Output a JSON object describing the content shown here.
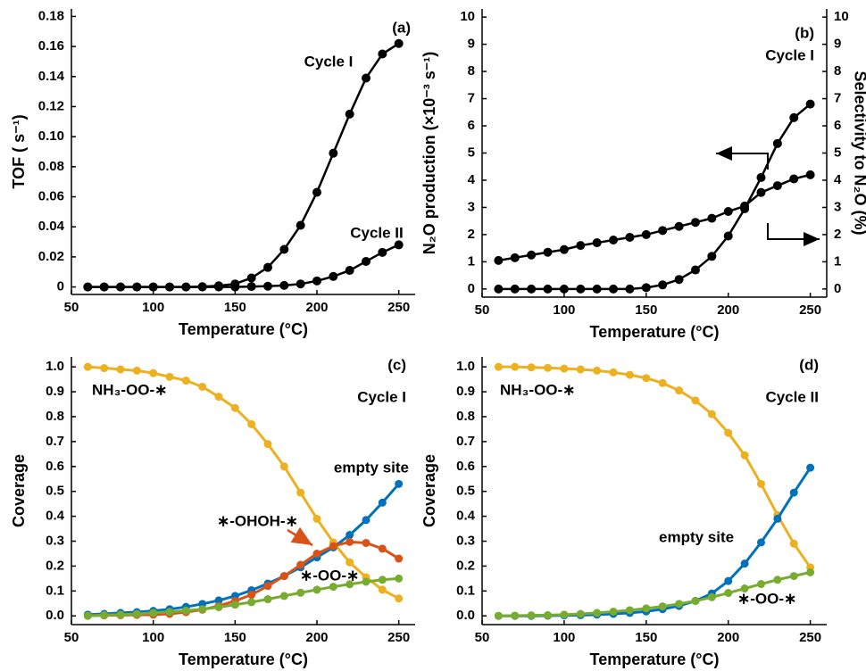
{
  "chart_data": [
    {
      "type": "line",
      "xlabel": "Temperature (°C)",
      "ylabel": "TOF ( s⁻¹)",
      "annotations": [
        "(a)"
      ],
      "x": [
        60,
        70,
        80,
        90,
        100,
        110,
        120,
        130,
        140,
        150,
        160,
        170,
        180,
        190,
        200,
        210,
        220,
        230,
        240,
        250
      ],
      "series": [
        {
          "name": "Cycle I",
          "color": "#000000",
          "values": [
            0,
            0,
            0,
            0,
            0,
            0,
            0,
            0.0002,
            0.0008,
            0.002,
            0.006,
            0.013,
            0.025,
            0.041,
            0.063,
            0.089,
            0.115,
            0.139,
            0.155,
            0.162
          ]
        },
        {
          "name": "Cycle II",
          "color": "#000000",
          "values": [
            0,
            0,
            0,
            0,
            0,
            0,
            0,
            0,
            0,
            0,
            0.0003,
            0.0005,
            0.001,
            0.002,
            0.004,
            0.007,
            0.011,
            0.017,
            0.023,
            0.028
          ]
        }
      ],
      "xlim": [
        50,
        260
      ],
      "xticks": [
        50,
        100,
        150,
        200,
        250
      ],
      "ylim": [
        -0.005,
        0.185
      ],
      "yticks": [
        0,
        0.02,
        0.04,
        0.06,
        0.08,
        {
          "value": 0.1,
          "label": "0.10"
        },
        0.12,
        0.14,
        0.16,
        0.18
      ]
    },
    {
      "type": "line",
      "xlabel": "Temperature (°C)",
      "ylabel": "N₂O production (×10⁻³ s⁻¹)",
      "y2label": "Selectivity to N₂O (%)",
      "annotations": [
        "(b)",
        "Cycle I"
      ],
      "x": [
        60,
        70,
        80,
        90,
        100,
        110,
        120,
        130,
        140,
        150,
        160,
        170,
        180,
        190,
        200,
        210,
        220,
        230,
        240,
        250
      ],
      "series": [
        {
          "color": "#000000",
          "values": [
            0,
            0,
            0,
            0,
            0,
            0,
            0,
            0,
            0,
            0.05,
            0.15,
            0.35,
            0.7,
            1.2,
            1.95,
            2.95,
            4.1,
            5.35,
            6.3,
            6.8
          ]
        },
        {
          "color": "#000000",
          "axis": "y2",
          "values": [
            1.05,
            1.15,
            1.25,
            1.35,
            1.45,
            1.6,
            1.7,
            1.8,
            1.9,
            2.0,
            2.15,
            2.3,
            2.45,
            2.6,
            2.85,
            3.05,
            3.55,
            3.8,
            4.05,
            4.2
          ]
        }
      ],
      "xlim": [
        50,
        260
      ],
      "xticks": [
        50,
        100,
        150,
        200,
        250
      ],
      "ylim": [
        -0.3,
        10.3
      ],
      "yticks": [
        0,
        1,
        2,
        3,
        4,
        5,
        6,
        7,
        8,
        9,
        10
      ],
      "y2lim": [
        -0.3,
        10.3
      ],
      "y2ticks": [
        0,
        1,
        2,
        3,
        4,
        5,
        6,
        7,
        8,
        9,
        10
      ]
    },
    {
      "type": "line",
      "xlabel": "Temperature (°C)",
      "ylabel": "Coverage",
      "annotations": [
        "(c)",
        "Cycle I"
      ],
      "x": [
        60,
        70,
        80,
        90,
        100,
        110,
        120,
        130,
        140,
        150,
        160,
        170,
        180,
        190,
        200,
        210,
        220,
        230,
        240,
        250
      ],
      "series": [
        {
          "name": "NH₃-OO-∗",
          "color": "#EDB120",
          "values": [
            1.0,
            0.995,
            0.99,
            0.985,
            0.975,
            0.96,
            0.945,
            0.92,
            0.88,
            0.835,
            0.77,
            0.69,
            0.6,
            0.495,
            0.39,
            0.295,
            0.215,
            0.155,
            0.105,
            0.07
          ]
        },
        {
          "name": "empty site",
          "color": "#0072BD",
          "values": [
            0.005,
            0.008,
            0.012,
            0.015,
            0.02,
            0.027,
            0.036,
            0.048,
            0.062,
            0.08,
            0.103,
            0.13,
            0.16,
            0.195,
            0.235,
            0.275,
            0.325,
            0.385,
            0.455,
            0.53
          ]
        },
        {
          "name": "∗-OHOH-∗",
          "color": "#D95319",
          "values": [
            0.001,
            0.002,
            0.003,
            0.004,
            0.005,
            0.008,
            0.015,
            0.025,
            0.04,
            0.06,
            0.085,
            0.12,
            0.16,
            0.205,
            0.25,
            0.28,
            0.297,
            0.293,
            0.27,
            0.23
          ]
        },
        {
          "name": "∗-OO-∗",
          "color": "#77AC30",
          "values": [
            0.0,
            0.003,
            0.005,
            0.008,
            0.012,
            0.016,
            0.021,
            0.027,
            0.035,
            0.045,
            0.055,
            0.067,
            0.08,
            0.093,
            0.105,
            0.117,
            0.127,
            0.137,
            0.145,
            0.15
          ]
        }
      ],
      "xlim": [
        50,
        260
      ],
      "xticks": [
        50,
        100,
        150,
        200,
        250
      ],
      "ylim": [
        -0.035,
        1.04
      ],
      "yticks": [
        {
          "value": 0,
          "label": "0.0"
        },
        0.1,
        0.2,
        0.3,
        0.4,
        0.5,
        0.6,
        0.7,
        0.8,
        0.9,
        {
          "value": 1,
          "label": "1.0"
        }
      ]
    },
    {
      "type": "line",
      "xlabel": "Temperature (°C)",
      "ylabel": "Coverage",
      "annotations": [
        "(d)",
        "Cycle II"
      ],
      "x": [
        60,
        70,
        80,
        90,
        100,
        110,
        120,
        130,
        140,
        150,
        160,
        170,
        180,
        190,
        200,
        210,
        220,
        230,
        240,
        250
      ],
      "series": [
        {
          "name": "NH₃-OO-∗",
          "color": "#EDB120",
          "values": [
            1.0,
            1.0,
            0.998,
            0.996,
            0.993,
            0.99,
            0.985,
            0.978,
            0.968,
            0.955,
            0.935,
            0.905,
            0.865,
            0.81,
            0.735,
            0.645,
            0.53,
            0.405,
            0.29,
            0.195
          ]
        },
        {
          "name": "empty site",
          "color": "#0072BD",
          "values": [
            0,
            0,
            0,
            0.001,
            0.002,
            0.003,
            0.005,
            0.008,
            0.012,
            0.018,
            0.027,
            0.04,
            0.06,
            0.09,
            0.14,
            0.21,
            0.295,
            0.39,
            0.495,
            0.595
          ]
        },
        {
          "name": "∗-OO-∗",
          "color": "#77AC30",
          "values": [
            0.0,
            0.001,
            0.002,
            0.003,
            0.005,
            0.008,
            0.012,
            0.017,
            0.023,
            0.03,
            0.038,
            0.048,
            0.06,
            0.075,
            0.092,
            0.11,
            0.128,
            0.145,
            0.16,
            0.175
          ]
        }
      ],
      "xlim": [
        50,
        260
      ],
      "xticks": [
        50,
        100,
        150,
        200,
        250
      ],
      "ylim": [
        -0.035,
        1.04
      ],
      "yticks": [
        {
          "value": 0,
          "label": "0.0"
        },
        0.1,
        0.2,
        0.3,
        0.4,
        0.5,
        0.6,
        0.7,
        0.8,
        0.9,
        {
          "value": 1,
          "label": "1.0"
        }
      ]
    }
  ]
}
